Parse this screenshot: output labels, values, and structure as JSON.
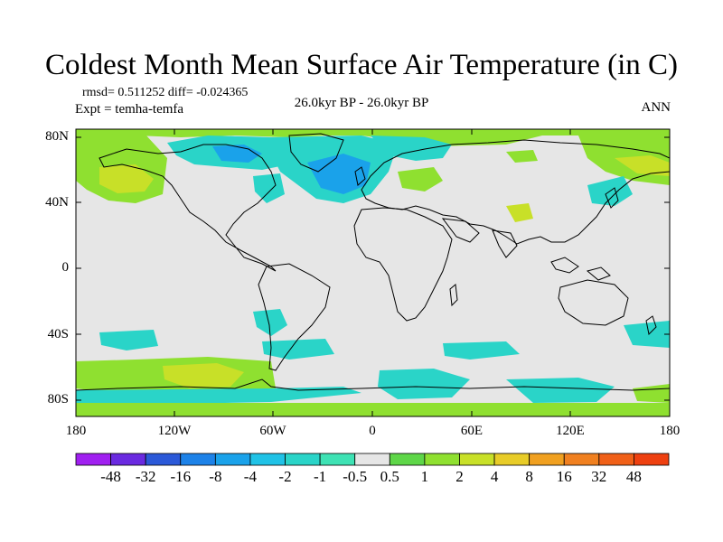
{
  "title": "Coldest Month Mean Surface Air Temperature (in C)",
  "stats_line": "rmsd= 0.511252 diff= -0.024365",
  "experiment_line": "Expt = temha-temfa",
  "period_line": "26.0kyr BP - 26.0kyr BP",
  "season": "ANN",
  "lat_ticks": [
    "80N",
    "40N",
    "0",
    "40S",
    "80S"
  ],
  "lon_ticks": [
    "180",
    "120W",
    "60W",
    "0",
    "60E",
    "120E",
    "180"
  ],
  "colorbar": {
    "colors": [
      "#a020f0",
      "#6a2ae0",
      "#2b59d8",
      "#1d82e8",
      "#1aa2ea",
      "#20c2e6",
      "#2ad4c8",
      "#3ee2b4",
      "#e6e6e6",
      "#5ed648",
      "#8fe030",
      "#c8e028",
      "#e8cc28",
      "#f0a020",
      "#f08020",
      "#f06018",
      "#ee4010"
    ],
    "labels": [
      "-48",
      "-32",
      "-16",
      "-8",
      "-4",
      "-2",
      "-1",
      "-0.5",
      "0.5",
      "1",
      "2",
      "4",
      "8",
      "16",
      "32",
      "48"
    ]
  },
  "map": {
    "ocean_color": "#e6e6e6",
    "coast_color": "#000000"
  }
}
